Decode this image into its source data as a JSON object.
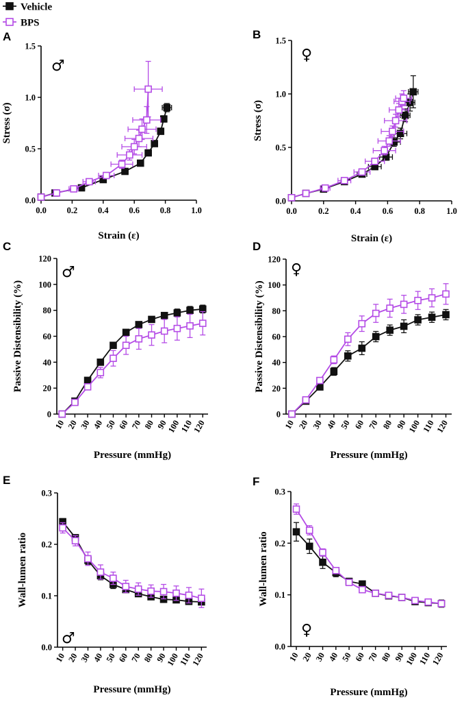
{
  "legend": {
    "entries": [
      {
        "label": "Vehicle",
        "color": "#111111",
        "marker": "filled-square"
      },
      {
        "label": "BPS",
        "color": "#b44be6",
        "marker": "open-square"
      }
    ]
  },
  "chart_data": [
    {
      "panel": "A",
      "sex": "♂",
      "type": "scatter",
      "xlabel": "Strain (ε)",
      "ylabel": "Stress (σ)",
      "xlim": [
        0,
        1.0
      ],
      "ylim": [
        0,
        1.5
      ],
      "xticks": [
        0.0,
        0.2,
        0.4,
        0.6,
        0.8,
        1.0
      ],
      "xticklabels": [
        "0.0",
        "0.2",
        "0.4",
        "0.6",
        "0.8",
        "1.0"
      ],
      "yticks": [
        0.0,
        0.5,
        1.0,
        1.5
      ],
      "yticklabels": [
        "0.0",
        "0.5",
        "1.0",
        "1.5"
      ],
      "series": [
        {
          "name": "Vehicle",
          "x": [
            0.0,
            0.09,
            0.26,
            0.4,
            0.54,
            0.64,
            0.69,
            0.73,
            0.77,
            0.79,
            0.81
          ],
          "y": [
            0.03,
            0.07,
            0.12,
            0.2,
            0.28,
            0.36,
            0.46,
            0.55,
            0.67,
            0.79,
            0.9
          ],
          "xerr": [
            0.01,
            0.01,
            0.02,
            0.02,
            0.02,
            0.02,
            0.02,
            0.02,
            0.02,
            0.02,
            0.03
          ],
          "yerr": [
            0.0,
            0.0,
            0.0,
            0.01,
            0.01,
            0.01,
            0.02,
            0.02,
            0.03,
            0.03,
            0.04
          ]
        },
        {
          "name": "BPS",
          "x": [
            0.0,
            0.1,
            0.21,
            0.31,
            0.42,
            0.52,
            0.57,
            0.6,
            0.63,
            0.65,
            0.68,
            0.69
          ],
          "y": [
            0.03,
            0.07,
            0.11,
            0.18,
            0.24,
            0.35,
            0.44,
            0.52,
            0.6,
            0.69,
            0.78,
            1.08
          ],
          "xerr": [
            0.01,
            0.02,
            0.03,
            0.04,
            0.05,
            0.07,
            0.08,
            0.08,
            0.09,
            0.09,
            0.09,
            0.09
          ],
          "yerr": [
            0.0,
            0.0,
            0.01,
            0.02,
            0.03,
            0.04,
            0.05,
            0.07,
            0.08,
            0.1,
            0.13,
            0.27
          ]
        }
      ]
    },
    {
      "panel": "B",
      "sex": "♀",
      "type": "scatter",
      "xlabel": "Strain (ε)",
      "ylabel": "Stress (σ)",
      "xlim": [
        0,
        1.0
      ],
      "ylim": [
        0,
        1.5
      ],
      "xticks": [
        0.0,
        0.2,
        0.4,
        0.6,
        0.8,
        1.0
      ],
      "xticklabels": [
        "0.0",
        "0.2",
        "0.4",
        "0.6",
        "0.8",
        "1.0"
      ],
      "yticks": [
        0.0,
        0.5,
        1.0,
        1.5
      ],
      "yticklabels": [
        "0.0",
        "0.5",
        "1.0",
        "1.5"
      ],
      "series": [
        {
          "name": "Vehicle",
          "x": [
            0.0,
            0.09,
            0.2,
            0.33,
            0.44,
            0.52,
            0.59,
            0.64,
            0.68,
            0.71,
            0.74,
            0.76
          ],
          "y": [
            0.03,
            0.07,
            0.11,
            0.18,
            0.25,
            0.32,
            0.41,
            0.55,
            0.63,
            0.8,
            0.92,
            1.02
          ],
          "xerr": [
            0.01,
            0.01,
            0.02,
            0.02,
            0.03,
            0.04,
            0.04,
            0.04,
            0.04,
            0.03,
            0.03,
            0.03
          ],
          "yerr": [
            0.0,
            0.0,
            0.01,
            0.01,
            0.02,
            0.02,
            0.03,
            0.04,
            0.05,
            0.06,
            0.08,
            0.15
          ]
        },
        {
          "name": "BPS",
          "x": [
            0.0,
            0.09,
            0.21,
            0.33,
            0.44,
            0.52,
            0.58,
            0.61,
            0.63,
            0.65,
            0.67,
            0.69,
            0.7
          ],
          "y": [
            0.03,
            0.07,
            0.12,
            0.19,
            0.27,
            0.37,
            0.47,
            0.56,
            0.65,
            0.75,
            0.85,
            0.93,
            0.96
          ],
          "xerr": [
            0.01,
            0.02,
            0.03,
            0.04,
            0.05,
            0.06,
            0.07,
            0.07,
            0.07,
            0.07,
            0.06,
            0.05,
            0.05
          ],
          "yerr": [
            0.0,
            0.0,
            0.01,
            0.02,
            0.03,
            0.03,
            0.04,
            0.05,
            0.05,
            0.06,
            0.06,
            0.07,
            0.07
          ]
        }
      ]
    },
    {
      "panel": "C",
      "sex": "♂",
      "type": "line",
      "xlabel": "Pressure (mmHg)",
      "ylabel": "Passive Distensibility (%)",
      "categories": [
        "10",
        "20",
        "30",
        "40",
        "50",
        "60",
        "70",
        "80",
        "90",
        "100",
        "110",
        "120"
      ],
      "ylim": [
        0,
        120
      ],
      "yticks": [
        0,
        20,
        40,
        60,
        80,
        100,
        120
      ],
      "yticklabels": [
        "0",
        "20",
        "40",
        "60",
        "80",
        "100",
        "120"
      ],
      "series": [
        {
          "name": "Vehicle",
          "values": [
            0,
            10,
            26,
            40,
            53,
            63,
            69,
            73,
            76,
            78,
            80,
            81
          ],
          "err": [
            0,
            1,
            2,
            2,
            2,
            2,
            2,
            2,
            2,
            3,
            3,
            3
          ]
        },
        {
          "name": "BPS",
          "values": [
            0,
            9,
            21,
            32,
            43,
            53,
            58,
            61,
            64,
            66,
            68,
            70
          ],
          "err": [
            0,
            1,
            2,
            4,
            6,
            7,
            8,
            8,
            9,
            9,
            9,
            9
          ]
        }
      ]
    },
    {
      "panel": "D",
      "sex": "♀",
      "type": "line",
      "xlabel": "Pressure (mmHg)",
      "ylabel": "Passive Distensibility (%)",
      "categories": [
        "10",
        "20",
        "30",
        "40",
        "50",
        "60",
        "70",
        "80",
        "90",
        "100",
        "110",
        "120"
      ],
      "ylim": [
        0,
        120
      ],
      "yticks": [
        0,
        20,
        40,
        60,
        80,
        100,
        120
      ],
      "yticklabels": [
        "0",
        "20",
        "40",
        "60",
        "80",
        "100",
        "120"
      ],
      "series": [
        {
          "name": "Vehicle",
          "values": [
            0,
            10,
            21,
            33,
            45,
            51,
            60,
            65,
            68,
            73,
            75,
            77
          ],
          "err": [
            0,
            1,
            2,
            3,
            4,
            5,
            4,
            4,
            5,
            4,
            4,
            4
          ]
        },
        {
          "name": "BPS",
          "values": [
            0,
            11,
            26,
            42,
            58,
            70,
            78,
            82,
            85,
            88,
            90,
            93
          ],
          "err": [
            0,
            1,
            2,
            3,
            5,
            6,
            7,
            7,
            7,
            7,
            7,
            8
          ]
        }
      ]
    },
    {
      "panel": "E",
      "sex": "♂",
      "type": "line",
      "xlabel": "Pressure (mmHg)",
      "ylabel": "Wall-lumen ratio",
      "categories": [
        "10",
        "20",
        "30",
        "40",
        "50",
        "60",
        "70",
        "80",
        "90",
        "100",
        "110",
        "120"
      ],
      "ylim": [
        0,
        0.3
      ],
      "yticks": [
        0,
        0.1,
        0.2,
        0.3
      ],
      "yticklabels": [
        "0.0",
        "0.1",
        "0.2",
        "0.3"
      ],
      "series": [
        {
          "name": "Vehicle",
          "values": [
            0.244,
            0.213,
            0.169,
            0.139,
            0.122,
            0.112,
            0.104,
            0.098,
            0.093,
            0.092,
            0.089,
            0.088
          ],
          "err": [
            0.006,
            0.006,
            0.008,
            0.008,
            0.008,
            0.006,
            0.005,
            0.005,
            0.005,
            0.005,
            0.005,
            0.005
          ]
        },
        {
          "name": "BPS",
          "values": [
            0.232,
            0.207,
            0.172,
            0.146,
            0.134,
            0.118,
            0.113,
            0.109,
            0.108,
            0.105,
            0.101,
            0.095
          ],
          "err": [
            0.01,
            0.01,
            0.013,
            0.014,
            0.012,
            0.012,
            0.012,
            0.012,
            0.014,
            0.014,
            0.015,
            0.018
          ]
        }
      ]
    },
    {
      "panel": "F",
      "sex": "♀",
      "type": "line",
      "xlabel": "Pressure (mmHg)",
      "ylabel": "Wall-lumen ratio",
      "categories": [
        "10",
        "20",
        "30",
        "40",
        "50",
        "60",
        "70",
        "80",
        "90",
        "100",
        "110",
        "120"
      ],
      "ylim": [
        0,
        0.3
      ],
      "yticks": [
        0,
        0.1,
        0.2,
        0.3
      ],
      "yticklabels": [
        "0.0",
        "0.1",
        "0.2",
        "0.3"
      ],
      "series": [
        {
          "name": "Vehicle",
          "values": [
            0.222,
            0.194,
            0.163,
            0.143,
            0.126,
            0.121,
            0.103,
            0.098,
            0.095,
            0.087,
            0.085,
            0.083
          ],
          "err": [
            0.018,
            0.014,
            0.012,
            0.008,
            0.006,
            0.005,
            0.005,
            0.005,
            0.006,
            0.006,
            0.006,
            0.007
          ]
        },
        {
          "name": "BPS",
          "values": [
            0.266,
            0.225,
            0.182,
            0.147,
            0.124,
            0.11,
            0.103,
            0.099,
            0.095,
            0.089,
            0.086,
            0.083
          ],
          "err": [
            0.01,
            0.009,
            0.007,
            0.005,
            0.004,
            0.004,
            0.004,
            0.004,
            0.004,
            0.004,
            0.004,
            0.004
          ]
        }
      ]
    }
  ]
}
